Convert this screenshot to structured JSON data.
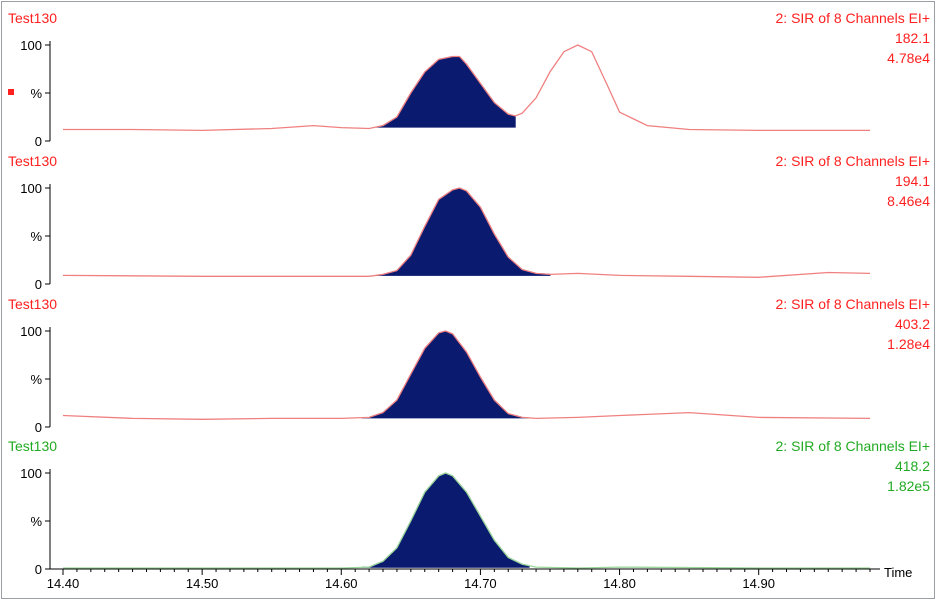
{
  "chart_data": {
    "type": "line",
    "xlabel": "Time",
    "xlim": [
      14.4,
      14.98
    ],
    "x_ticks": [
      {
        "v": 14.4,
        "label": "14.40"
      },
      {
        "v": 14.5,
        "label": "14.50"
      },
      {
        "v": 14.6,
        "label": "14.60"
      },
      {
        "v": 14.7,
        "label": "14.70"
      },
      {
        "v": 14.8,
        "label": "14.80"
      },
      {
        "v": 14.9,
        "label": "14.90"
      }
    ],
    "y_ticks": [
      "100",
      "%",
      "0"
    ],
    "ylim": [
      0,
      100
    ],
    "panels": [
      {
        "sample": "Test130",
        "function": "2: SIR of 8 Channels EI+",
        "mass": "182.1",
        "intensity": "4.78e4",
        "color": "#ff2020",
        "trace_color": "#f08080",
        "marker": true,
        "integrated_range": [
          14.625,
          14.725
        ],
        "x": [
          14.4,
          14.45,
          14.5,
          14.55,
          14.58,
          14.6,
          14.62,
          14.63,
          14.64,
          14.65,
          14.66,
          14.67,
          14.68,
          14.685,
          14.69,
          14.7,
          14.71,
          14.72,
          14.725,
          14.73,
          14.74,
          14.75,
          14.76,
          14.77,
          14.78,
          14.79,
          14.8,
          14.82,
          14.85,
          14.9,
          14.98
        ],
        "y": [
          12,
          12,
          11,
          13,
          16,
          14,
          13,
          16,
          25,
          50,
          72,
          85,
          88,
          88,
          80,
          60,
          40,
          28,
          26,
          29,
          45,
          72,
          93,
          100,
          93,
          62,
          30,
          16,
          12,
          11,
          11
        ]
      },
      {
        "sample": "Test130",
        "function": "2: SIR of 8 Channels EI+",
        "mass": "194.1",
        "intensity": "8.46e4",
        "color": "#ff2020",
        "trace_color": "#f08080",
        "marker": false,
        "integrated_range": [
          14.625,
          14.75
        ],
        "x": [
          14.4,
          14.5,
          14.55,
          14.6,
          14.62,
          14.63,
          14.64,
          14.65,
          14.66,
          14.67,
          14.68,
          14.685,
          14.69,
          14.7,
          14.71,
          14.72,
          14.73,
          14.74,
          14.75,
          14.77,
          14.8,
          14.85,
          14.9,
          14.95,
          14.98
        ],
        "y": [
          9,
          8,
          8,
          8,
          8,
          10,
          14,
          30,
          60,
          88,
          98,
          100,
          97,
          80,
          52,
          28,
          15,
          11,
          10,
          11,
          9,
          8,
          7,
          12,
          11
        ]
      },
      {
        "sample": "Test130",
        "function": "2: SIR of 8 Channels EI+",
        "mass": "403.2",
        "intensity": "1.28e4",
        "color": "#ff2020",
        "trace_color": "#f08080",
        "marker": false,
        "integrated_range": [
          14.615,
          14.735
        ],
        "x": [
          14.4,
          14.45,
          14.5,
          14.55,
          14.6,
          14.62,
          14.63,
          14.64,
          14.65,
          14.66,
          14.67,
          14.675,
          14.68,
          14.69,
          14.7,
          14.71,
          14.72,
          14.73,
          14.74,
          14.77,
          14.8,
          14.85,
          14.9,
          14.98
        ],
        "y": [
          12,
          9,
          8,
          9,
          9,
          10,
          15,
          28,
          55,
          82,
          98,
          100,
          97,
          78,
          52,
          28,
          14,
          10,
          9,
          10,
          12,
          15,
          10,
          9
        ]
      },
      {
        "sample": "Test130",
        "function": "2: SIR of 8 Channels EI+",
        "mass": "418.2",
        "intensity": "1.82e5",
        "color": "#22aa22",
        "trace_color": "#99d699",
        "marker": false,
        "integrated_range": [
          14.615,
          14.735
        ],
        "x": [
          14.4,
          14.5,
          14.6,
          14.62,
          14.63,
          14.64,
          14.65,
          14.66,
          14.67,
          14.675,
          14.68,
          14.69,
          14.7,
          14.71,
          14.72,
          14.73,
          14.74,
          14.77,
          14.8,
          14.9,
          14.98
        ],
        "y": [
          1,
          1,
          1,
          2,
          8,
          22,
          50,
          80,
          97,
          100,
          97,
          80,
          55,
          30,
          12,
          5,
          2,
          1,
          2,
          1,
          1
        ]
      }
    ]
  }
}
